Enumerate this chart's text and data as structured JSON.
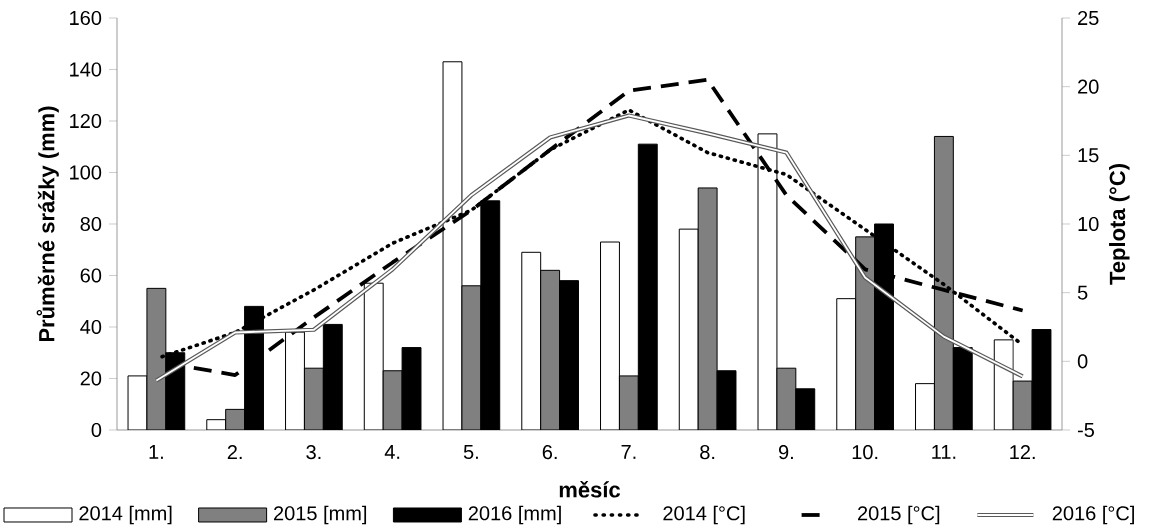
{
  "chart_data": {
    "type": "bar",
    "xlabel": "měsíc",
    "ylabel": "Průměrné srážky (mm)",
    "y2label": "Teplota (°C)",
    "categories": [
      "1.",
      "2.",
      "3.",
      "4.",
      "5.",
      "6.",
      "7.",
      "8.",
      "9.",
      "10.",
      "11.",
      "12."
    ],
    "ylim": [
      0,
      160
    ],
    "yticks": [
      0,
      20,
      40,
      60,
      80,
      100,
      120,
      140,
      160
    ],
    "y2lim": [
      -5,
      25
    ],
    "y2ticks": [
      -5,
      0,
      5,
      10,
      15,
      20,
      25
    ],
    "legend": "bottom",
    "series": [
      {
        "name": "2014 [mm]",
        "type": "bar",
        "color": "#ffffff",
        "values": [
          21,
          4,
          38,
          57,
          143,
          69,
          73,
          78,
          115,
          51,
          18,
          35
        ]
      },
      {
        "name": "2015 [mm]",
        "type": "bar",
        "color": "#808080",
        "values": [
          55,
          8,
          24,
          23,
          56,
          62,
          21,
          94,
          24,
          75,
          114,
          19
        ]
      },
      {
        "name": "2016 [mm]",
        "type": "bar",
        "color": "#000000",
        "values": [
          30,
          48,
          41,
          32,
          89,
          58,
          111,
          23,
          16,
          80,
          32,
          39
        ]
      },
      {
        "name": "2014 [°C]",
        "type": "line",
        "axis": "y2",
        "line_style": "dotted",
        "color": "#000000",
        "values": [
          0.2,
          2.1,
          5.2,
          8.6,
          11,
          15.4,
          18.3,
          15.2,
          13.6,
          9.6,
          5.6,
          1.2
        ]
      },
      {
        "name": "2015 [°C]",
        "type": "line",
        "axis": "y2",
        "line_style": "dashed",
        "color": "#000000",
        "values": [
          0,
          -1,
          3.2,
          7.2,
          11,
          15.4,
          19.7,
          20.5,
          12.1,
          6.7,
          5.2,
          3.7
        ]
      },
      {
        "name": "2016 [°C]",
        "type": "line",
        "axis": "y2",
        "line_style": "solid",
        "color": "#595959",
        "values": [
          -1.4,
          2.1,
          2.3,
          6.7,
          12.1,
          16.3,
          17.9,
          16.6,
          15.2,
          6.1,
          1.8,
          -1.1
        ]
      }
    ]
  }
}
